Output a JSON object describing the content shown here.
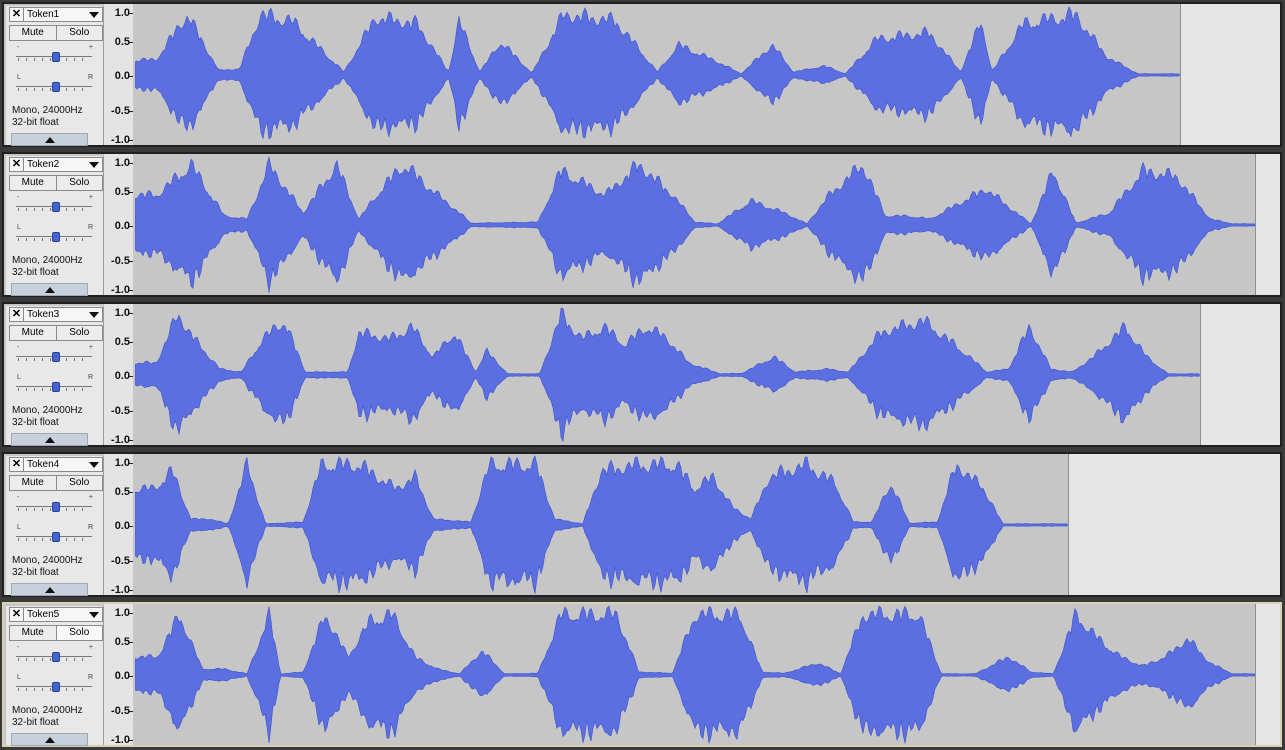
{
  "tracks": [
    {
      "name": "Token1",
      "mute_label": "Mute",
      "solo_label": "Solo",
      "format_line1": "Mono, 24000Hz",
      "format_line2": "32-bit float",
      "selected": false,
      "solo_active": false,
      "clip_fraction": 0.913
    },
    {
      "name": "Token2",
      "mute_label": "Mute",
      "solo_label": "Solo",
      "format_line1": "Mono, 24000Hz",
      "format_line2": "32-bit float",
      "selected": false,
      "solo_active": false,
      "clip_fraction": 0.978
    },
    {
      "name": "Token3",
      "mute_label": "Mute",
      "solo_label": "Solo",
      "format_line1": "Mono, 24000Hz",
      "format_line2": "32-bit float",
      "selected": false,
      "solo_active": false,
      "clip_fraction": 0.93
    },
    {
      "name": "Token4",
      "mute_label": "Mute",
      "solo_label": "Solo",
      "format_line1": "Mono, 24000Hz",
      "format_line2": "32-bit float",
      "selected": false,
      "solo_active": false,
      "clip_fraction": 0.815
    },
    {
      "name": "Token5",
      "mute_label": "Mute",
      "solo_label": "Solo",
      "format_line1": "Mono, 24000Hz",
      "format_line2": "32-bit float",
      "selected": true,
      "solo_active": true,
      "clip_fraction": 0.978
    }
  ],
  "gain_slider": {
    "min_label": "-",
    "max_label": "+",
    "value_fraction": 0.5
  },
  "pan_slider": {
    "min_label": "L",
    "max_label": "R",
    "value_fraction": 0.5
  },
  "amplitude_scale": [
    "1.0",
    "0.5",
    "0.0",
    "-0.5",
    "-1.0"
  ],
  "icons": {
    "close": "close-icon",
    "dropdown": "chevron-down-icon",
    "collapse": "collapse-up-icon"
  },
  "colors": {
    "waveform": "#5b6fe0",
    "waveform_edge": "#3d52cf",
    "clip_background": "#c6c6c6",
    "empty_background": "#e6e6e6",
    "selected_border": "#d8d2b0"
  },
  "waveform_envelopes": [
    [
      [
        0.02,
        0.25
      ],
      [
        0.05,
        1
      ],
      [
        0.08,
        0.08
      ],
      [
        0.1,
        0.1
      ],
      [
        0.12,
        1
      ],
      [
        0.15,
        0.9
      ],
      [
        0.2,
        0.05
      ],
      [
        0.23,
        0.95
      ],
      [
        0.27,
        0.85
      ],
      [
        0.3,
        0.05
      ],
      [
        0.31,
        0.9
      ],
      [
        0.33,
        0.05
      ],
      [
        0.35,
        0.55
      ],
      [
        0.38,
        0.03
      ],
      [
        0.41,
        1
      ],
      [
        0.46,
        0.9
      ],
      [
        0.5,
        0.05
      ],
      [
        0.52,
        0.5
      ],
      [
        0.56,
        0.2
      ],
      [
        0.58,
        0.02
      ],
      [
        0.61,
        0.5
      ],
      [
        0.63,
        0.05
      ],
      [
        0.66,
        0.15
      ],
      [
        0.68,
        0.02
      ],
      [
        0.71,
        0.6
      ],
      [
        0.76,
        0.7
      ],
      [
        0.79,
        0.05
      ],
      [
        0.81,
        0.9
      ],
      [
        0.82,
        0.05
      ],
      [
        0.85,
        0.85
      ],
      [
        0.9,
        1
      ],
      [
        0.93,
        0.3
      ],
      [
        0.96,
        0.02
      ]
    ],
    [
      [
        0.02,
        0.5
      ],
      [
        0.05,
        1
      ],
      [
        0.08,
        0.15
      ],
      [
        0.1,
        0.1
      ],
      [
        0.12,
        1
      ],
      [
        0.15,
        0.2
      ],
      [
        0.18,
        1
      ],
      [
        0.2,
        0.1
      ],
      [
        0.22,
        0.6
      ],
      [
        0.24,
        1
      ],
      [
        0.27,
        0.5
      ],
      [
        0.29,
        0.2
      ],
      [
        0.3,
        0.03
      ],
      [
        0.36,
        0.05
      ],
      [
        0.38,
        0.9
      ],
      [
        0.42,
        0.5
      ],
      [
        0.45,
        1
      ],
      [
        0.48,
        0.5
      ],
      [
        0.5,
        0.05
      ],
      [
        0.52,
        0.02
      ],
      [
        0.55,
        0.4
      ],
      [
        0.58,
        0.2
      ],
      [
        0.6,
        0.02
      ],
      [
        0.62,
        0.5
      ],
      [
        0.65,
        1
      ],
      [
        0.67,
        0.15
      ],
      [
        0.69,
        0.15
      ],
      [
        0.71,
        0.1
      ],
      [
        0.74,
        0.4
      ],
      [
        0.76,
        0.6
      ],
      [
        0.78,
        0.3
      ],
      [
        0.8,
        0.02
      ],
      [
        0.82,
        0.9
      ],
      [
        0.84,
        0.03
      ],
      [
        0.87,
        0.2
      ],
      [
        0.9,
        0.9
      ],
      [
        0.93,
        0.8
      ],
      [
        0.96,
        0.1
      ],
      [
        0.98,
        0.02
      ]
    ],
    [
      [
        0.02,
        0.2
      ],
      [
        0.04,
        1
      ],
      [
        0.06,
        0.5
      ],
      [
        0.08,
        0.1
      ],
      [
        0.1,
        0.05
      ],
      [
        0.12,
        0.6
      ],
      [
        0.14,
        0.9
      ],
      [
        0.16,
        0.05
      ],
      [
        0.2,
        0.05
      ],
      [
        0.21,
        0.7
      ],
      [
        0.24,
        0.6
      ],
      [
        0.26,
        0.8
      ],
      [
        0.28,
        0.3
      ],
      [
        0.3,
        0.7
      ],
      [
        0.32,
        0.05
      ],
      [
        0.33,
        0.4
      ],
      [
        0.35,
        0.02
      ],
      [
        0.38,
        0.02
      ],
      [
        0.4,
        1
      ],
      [
        0.42,
        0.6
      ],
      [
        0.44,
        0.8
      ],
      [
        0.46,
        0.5
      ],
      [
        0.48,
        0.8
      ],
      [
        0.5,
        0.6
      ],
      [
        0.52,
        0.2
      ],
      [
        0.55,
        0.02
      ],
      [
        0.57,
        0.03
      ],
      [
        0.6,
        0.3
      ],
      [
        0.62,
        0.05
      ],
      [
        0.65,
        0.1
      ],
      [
        0.67,
        0.05
      ],
      [
        0.7,
        0.7
      ],
      [
        0.74,
        0.9
      ],
      [
        0.77,
        0.5
      ],
      [
        0.8,
        0.05
      ],
      [
        0.82,
        0.1
      ],
      [
        0.84,
        0.8
      ],
      [
        0.86,
        0.1
      ],
      [
        0.88,
        0.05
      ],
      [
        0.9,
        0.3
      ],
      [
        0.93,
        0.8
      ],
      [
        0.95,
        0.3
      ],
      [
        0.97,
        0.02
      ]
    ],
    [
      [
        0.02,
        0.6
      ],
      [
        0.04,
        0.9
      ],
      [
        0.06,
        0.1
      ],
      [
        0.08,
        0.1
      ],
      [
        0.1,
        0.02
      ],
      [
        0.12,
        1
      ],
      [
        0.14,
        0.02
      ],
      [
        0.18,
        0.05
      ],
      [
        0.2,
        1
      ],
      [
        0.24,
        1
      ],
      [
        0.28,
        0.6
      ],
      [
        0.3,
        0.8
      ],
      [
        0.32,
        0.1
      ],
      [
        0.36,
        0.05
      ],
      [
        0.38,
        1
      ],
      [
        0.43,
        1
      ],
      [
        0.45,
        0.1
      ],
      [
        0.48,
        0.02
      ],
      [
        0.5,
        0.9
      ],
      [
        0.54,
        1
      ],
      [
        0.58,
        1
      ],
      [
        0.6,
        0.6
      ],
      [
        0.62,
        0.8
      ],
      [
        0.64,
        0.3
      ],
      [
        0.66,
        0.1
      ],
      [
        0.68,
        0.8
      ],
      [
        0.72,
        1
      ],
      [
        0.75,
        0.7
      ],
      [
        0.77,
        0.05
      ],
      [
        0.79,
        0.05
      ],
      [
        0.81,
        0.7
      ],
      [
        0.83,
        0.03
      ],
      [
        0.86,
        0.05
      ],
      [
        0.88,
        1
      ],
      [
        0.91,
        0.6
      ],
      [
        0.93,
        0.02
      ]
    ],
    [
      [
        0.02,
        0.3
      ],
      [
        0.04,
        1
      ],
      [
        0.06,
        0.1
      ],
      [
        0.08,
        0.1
      ],
      [
        0.1,
        0.02
      ],
      [
        0.12,
        1
      ],
      [
        0.13,
        0.02
      ],
      [
        0.15,
        0.05
      ],
      [
        0.17,
        1
      ],
      [
        0.19,
        0.3
      ],
      [
        0.21,
        0.9
      ],
      [
        0.23,
        1
      ],
      [
        0.25,
        0.3
      ],
      [
        0.27,
        0.1
      ],
      [
        0.29,
        0.02
      ],
      [
        0.31,
        0.4
      ],
      [
        0.33,
        0.02
      ],
      [
        0.36,
        0.03
      ],
      [
        0.38,
        1
      ],
      [
        0.41,
        1
      ],
      [
        0.43,
        1
      ],
      [
        0.45,
        0.05
      ],
      [
        0.48,
        0.03
      ],
      [
        0.5,
        1
      ],
      [
        0.54,
        1
      ],
      [
        0.56,
        0.05
      ],
      [
        0.58,
        0.03
      ],
      [
        0.61,
        0.2
      ],
      [
        0.63,
        0.02
      ],
      [
        0.65,
        1
      ],
      [
        0.7,
        1
      ],
      [
        0.72,
        0.02
      ],
      [
        0.75,
        0.02
      ],
      [
        0.78,
        0.3
      ],
      [
        0.8,
        0.05
      ],
      [
        0.82,
        0.02
      ],
      [
        0.84,
        1
      ],
      [
        0.86,
        0.6
      ],
      [
        0.88,
        0.3
      ],
      [
        0.9,
        0.15
      ],
      [
        0.92,
        0.3
      ],
      [
        0.94,
        0.6
      ],
      [
        0.96,
        0.2
      ],
      [
        0.98,
        0.02
      ]
    ]
  ]
}
